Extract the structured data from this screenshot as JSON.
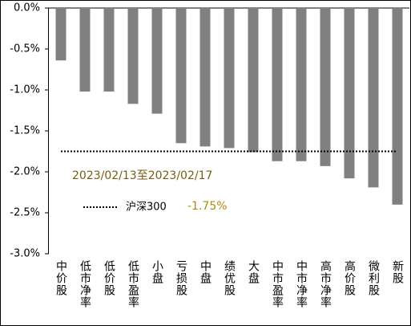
{
  "chart_data": {
    "type": "bar",
    "categories": [
      "中价股",
      "低市净率",
      "低价股",
      "低市盈率",
      "小盘",
      "亏损股",
      "中盘",
      "绩优股",
      "大盘",
      "中市盈率",
      "中市净率",
      "高市净率",
      "高价股",
      "微利股",
      "新股"
    ],
    "values": [
      -0.64,
      -1.02,
      -1.02,
      -1.17,
      -1.29,
      -1.65,
      -1.69,
      -1.71,
      -1.76,
      -1.87,
      -1.87,
      -1.93,
      -2.08,
      -2.19,
      -2.4
    ],
    "color": "#808080",
    "ylim": [
      -3.0,
      0.0
    ],
    "yticks": [
      {
        "value": 0.0,
        "label": "0.0%"
      },
      {
        "value": -0.5,
        "label": "-0.5%"
      },
      {
        "value": -1.0,
        "label": "-1.0%"
      },
      {
        "value": -1.5,
        "label": "-1.5%"
      },
      {
        "value": -2.0,
        "label": "-2.0%"
      },
      {
        "value": -2.5,
        "label": "-2.5%"
      },
      {
        "value": -3.0,
        "label": "-3.0%"
      }
    ],
    "annotation": "2023/02/13至2023/02/17",
    "reference": {
      "name": "沪深300",
      "value": -1.75,
      "label": "-1.75%",
      "color": "#000000"
    }
  }
}
